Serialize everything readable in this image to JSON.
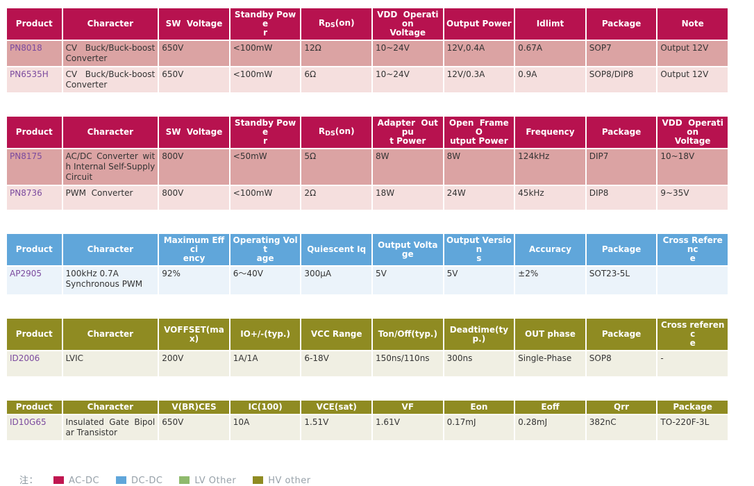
{
  "colors": {
    "accent_ac_dc": "#B7124F",
    "accent_dc_dc": "#60A6DA",
    "accent_lv_other": "#8FBA6D",
    "accent_hv_other": "#8F8B22",
    "row_dark_pink": "#DBA3A3",
    "row_light_pink": "#F5DFDE",
    "row_light_blue": "#EBF3FA",
    "row_light_olive": "#F0EFE3",
    "product_link": "#7B4A9E"
  },
  "tables": [
    {
      "id": "tbl-0",
      "theme": "ac-dc",
      "headers": [
        "Product",
        "Character",
        "SW  Voltage",
        "Standby Powe\nr",
        {
          "parts": [
            {
              "t": "R"
            },
            {
              "t": "DS",
              "sub": true
            },
            {
              "t": "(on)"
            }
          ]
        },
        "VDD  Operation\nVoltage",
        "Output Power",
        "Idlimt",
        "Package",
        "Note"
      ],
      "rows": [
        {
          "product": "PN8018",
          "cells": [
            "CV Buck/Buck-boost Converter",
            "650V",
            "<100mW",
            "12Ω",
            "10~24V",
            "12V,0.4A",
            "0.67A",
            "SOP7",
            "Output 12V"
          ]
        },
        {
          "product": "PN6535H",
          "cells": [
            "CV Buck/Buck-boost Converter",
            "650V",
            "<100mW",
            "6Ω",
            "10~24V",
            "12V/0.3A",
            "0.9A",
            "SOP8/DIP8",
            "Output 12V"
          ]
        }
      ]
    },
    {
      "id": "tbl-1",
      "theme": "ac-dc",
      "headers": [
        "Product",
        "Character",
        "SW  Voltage",
        "Standby Powe\nr",
        {
          "parts": [
            {
              "t": "R"
            },
            {
              "t": "DS",
              "sub": true
            },
            {
              "t": "(on)"
            }
          ]
        },
        "Adapter  Outpu\nt Power",
        "Open  Frame  O\nutput Power",
        "Frequency",
        "Package",
        "VDD  Operation\nVoltage"
      ],
      "rows": [
        {
          "product": "PN8175",
          "cells": [
            "AC/DC Converter with Internal Self-Supply Circuit",
            "800V",
            "<50mW",
            "5Ω",
            "8W",
            "8W",
            "124kHz",
            "DIP7",
            "10~18V"
          ]
        },
        {
          "product": "PN8736",
          "cells": [
            "PWM  Converter",
            "800V",
            "<100mW",
            "2Ω",
            "18W",
            "24W",
            "45kHz",
            "DIP8",
            "9~35V"
          ]
        }
      ]
    },
    {
      "id": "tbl-2",
      "theme": "dc-dc",
      "headers": [
        "Product",
        "Character",
        "Maximum Effci\nency",
        "Operating Volt\nage",
        "Quiescent Iq",
        "Output Voltage",
        "Output Version\ns",
        "Accuracy",
        "Package",
        "Cross Referenc\ne"
      ],
      "rows": [
        {
          "product": "AP2905",
          "cells": [
            "100kHz 0.7A\nSynchronous PWM",
            "92%",
            "6～40V",
            "300µA",
            "5V",
            "5V",
            "±2%",
            "SOT23-5L",
            ""
          ]
        }
      ]
    },
    {
      "id": "tbl-3",
      "theme": "hv-other",
      "headers": [
        "Product",
        "Character",
        "VOFFSET(max)",
        "IO+/-(typ.)",
        "VCC Range",
        "Ton/Off(typ.)",
        "Deadtime(typ.)",
        "OUT phase",
        "Package",
        "Cross referenc\ne"
      ],
      "rows": [
        {
          "product": "ID2006",
          "cells": [
            "LVIC",
            "200V",
            "1A/1A",
            "6-18V",
            "150ns/110ns",
            "300ns",
            "Single-Phase",
            "SOP8",
            "-"
          ]
        }
      ]
    },
    {
      "id": "tbl-4",
      "theme": "hv-other",
      "headers": [
        "Product",
        "Character",
        "V(BR)CES",
        "IC(100)",
        "VCE(sat)",
        "VF",
        "Eon",
        "Eoff",
        "Qrr",
        "Package"
      ],
      "rows": [
        {
          "product": "ID10G65",
          "cells": [
            "Insulated Gate Bipolar Transistor",
            "650V",
            "10A",
            "1.51V",
            "1.61V",
            "0.17mJ",
            "0.28mJ",
            "382nC",
            "TO-220F-3L"
          ]
        }
      ]
    }
  ],
  "legend": {
    "prefix": "注：",
    "items": [
      {
        "label": "AC-DC",
        "color": "#C01650"
      },
      {
        "label": "DC-DC",
        "color": "#60A6DA"
      },
      {
        "label": "LV Other",
        "color": "#8FBA6D"
      },
      {
        "label": "HV other",
        "color": "#8F8B22"
      }
    ]
  }
}
